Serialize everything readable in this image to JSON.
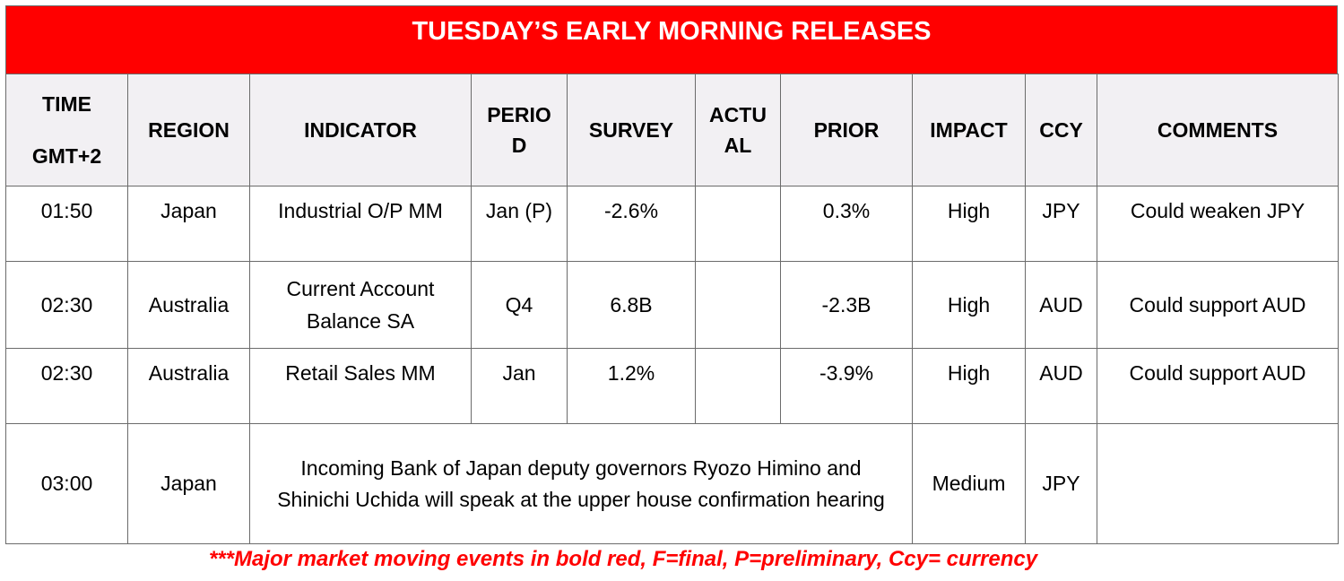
{
  "title": "TUESDAY’S EARLY MORNING RELEASES",
  "headers": {
    "time_line1": "TIME",
    "time_line2": "GMT+2",
    "region": "REGION",
    "indicator": "INDICATOR",
    "period": "PERIO D",
    "survey": "SURVEY",
    "actual": "ACTU AL",
    "prior": "PRIOR",
    "impact": "IMPACT",
    "ccy": "CCY",
    "comments": "COMMENTS"
  },
  "rows": [
    {
      "time": "01:50",
      "region": "Japan",
      "indicator": "Industrial O/P MM",
      "period": "Jan (P)",
      "survey": "-2.6%",
      "actual": "",
      "prior": "0.3%",
      "impact": "High",
      "ccy": "JPY",
      "comments": "Could weaken JPY"
    },
    {
      "time": "02:30",
      "region": "Australia",
      "indicator": "Current Account Balance SA",
      "period": "Q4",
      "survey": "6.8B",
      "actual": "",
      "prior": "-2.3B",
      "impact": "High",
      "ccy": "AUD",
      "comments": "Could support AUD"
    },
    {
      "time": "02:30",
      "region": "Australia",
      "indicator": "Retail Sales MM",
      "period": "Jan",
      "survey": "1.2%",
      "actual": "",
      "prior": "-3.9%",
      "impact": "High",
      "ccy": "AUD",
      "comments": "Could support AUD"
    },
    {
      "time": "03:00",
      "region": "Japan",
      "description": "Incoming Bank of Japan deputy governors Ryozo Himino and Shinichi Uchida will speak at the upper house confirmation hearing",
      "impact": "Medium",
      "ccy": "JPY",
      "comments": ""
    }
  ],
  "footnote": "***Major market moving events in bold red, F=final, P=preliminary, Ccy= currency",
  "colors": {
    "banner": "#ff0000",
    "header_bg": "#f2f0f3",
    "footnote": "#ff0000"
  }
}
